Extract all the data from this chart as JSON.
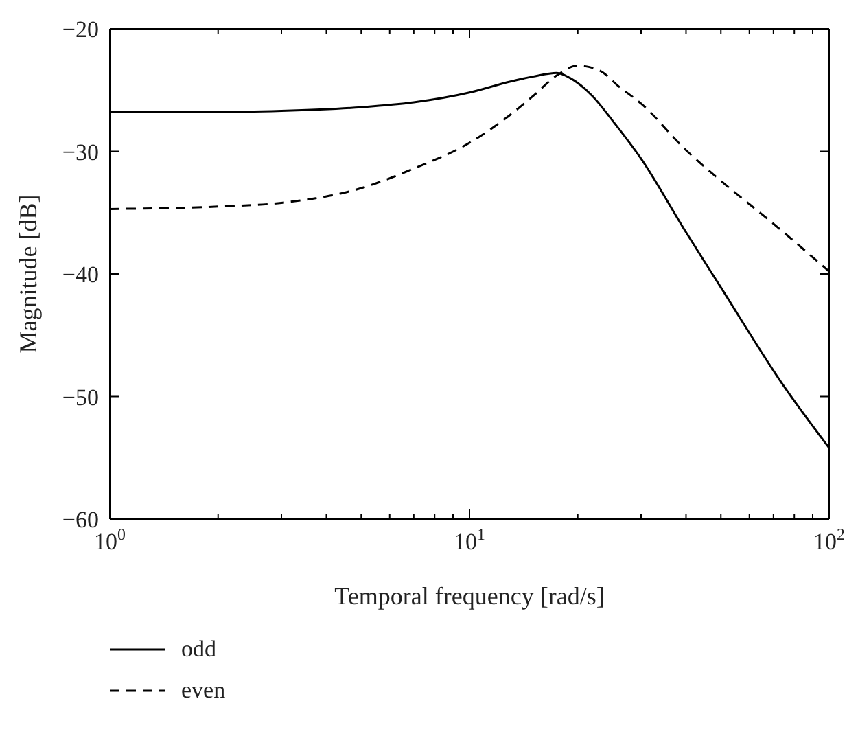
{
  "chart_data": {
    "type": "line",
    "xlabel": "Temporal frequency [rad/s]",
    "ylabel": "Magnitude [dB]",
    "log": "x",
    "xlim": [
      1,
      100
    ],
    "ylim": [
      -60,
      -20
    ],
    "xticks": [
      {
        "value": 1,
        "label": "10$^{0}$"
      },
      {
        "value": 2,
        "label": null
      },
      {
        "value": 3,
        "label": null
      },
      {
        "value": 4,
        "label": null
      },
      {
        "value": 5,
        "label": null
      },
      {
        "value": 6,
        "label": null
      },
      {
        "value": 7,
        "label": null
      },
      {
        "value": 8,
        "label": null
      },
      {
        "value": 9,
        "label": null
      },
      {
        "value": 10,
        "label": "10$^{1}$"
      },
      {
        "value": 20,
        "label": null
      },
      {
        "value": 30,
        "label": null
      },
      {
        "value": 40,
        "label": null
      },
      {
        "value": 50,
        "label": null
      },
      {
        "value": 60,
        "label": null
      },
      {
        "value": 70,
        "label": null
      },
      {
        "value": 80,
        "label": null
      },
      {
        "value": 90,
        "label": null
      },
      {
        "value": 100,
        "label": "10$^{2}$"
      }
    ],
    "yticks": [
      -60,
      -50,
      -40,
      -30,
      -20
    ],
    "legend": "bottom left",
    "marker": "none",
    "series": [
      {
        "name": "odd",
        "color": "#000000",
        "line_style": "solid",
        "x": [
          1,
          2,
          3,
          5,
          7,
          10,
          13,
          15,
          17.5,
          19,
          22,
          25,
          30,
          40,
          50,
          75,
          100
        ],
        "values": [
          -26.8,
          -26.8,
          -26.7,
          -26.4,
          -26.0,
          -25.2,
          -24.3,
          -23.9,
          -23.6,
          -24.0,
          -25.5,
          -27.5,
          -30.6,
          -36.6,
          -41.1,
          -49.2,
          -54.2
        ]
      },
      {
        "name": "even",
        "color": "#000000",
        "line_style": "dashed",
        "x": [
          1,
          2,
          3,
          5,
          7,
          10,
          13,
          15,
          17.5,
          20,
          23,
          26,
          30,
          40,
          50,
          70,
          100
        ],
        "values": [
          -34.7,
          -34.5,
          -34.2,
          -33.0,
          -31.4,
          -29.3,
          -27.0,
          -25.5,
          -23.8,
          -23.0,
          -23.4,
          -24.7,
          -26.1,
          -29.9,
          -32.4,
          -35.9,
          -39.8
        ]
      }
    ]
  }
}
